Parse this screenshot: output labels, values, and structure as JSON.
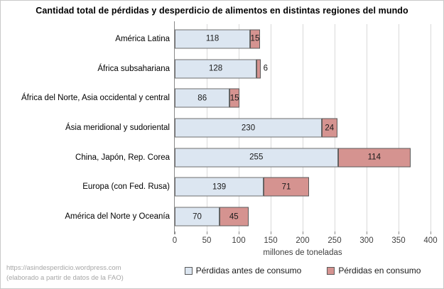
{
  "title": "Cantidad total de pérdidas y desperdicio de alimentos en distintas regiones del mundo",
  "footer": {
    "line1": "https://asindesperdicio.wordpress.com",
    "line2": "(elaborado a partir de datos de la FAO)"
  },
  "colors": {
    "before_fill": "#dce6f1",
    "during_fill": "#d59390",
    "bar_border": "#5a5a5a",
    "gridline": "#d9d9d9",
    "axis_line": "#8a8a8a",
    "footer_text": "#a6a6a6"
  },
  "chart_data": {
    "type": "bar",
    "orientation": "horizontal",
    "stacked": true,
    "title": "Cantidad total de pérdidas y desperdicio de alimentos en distintas regiones del mundo",
    "xlabel": "millones de toneladas",
    "ylabel": "",
    "xlim": [
      0,
      400
    ],
    "xticks": [
      0,
      50,
      100,
      150,
      200,
      250,
      300,
      350,
      400
    ],
    "grid": true,
    "legend_position": "bottom",
    "categories": [
      "América Latina",
      "África subsahariana",
      "África del Norte, Asia occidental y central",
      "Ásia meridional y sudoriental",
      "China, Japón, Rep. Corea",
      "Europa (con Fed. Rusa)",
      "América del Norte y Oceanía"
    ],
    "series": [
      {
        "name": "Pérdidas antes de consumo",
        "color": "#dce6f1",
        "values": [
          118,
          128,
          86,
          230,
          255,
          139,
          70
        ]
      },
      {
        "name": "Pérdidas en consumo",
        "color": "#d59390",
        "values": [
          15,
          6,
          15,
          24,
          114,
          71,
          45
        ]
      }
    ]
  }
}
